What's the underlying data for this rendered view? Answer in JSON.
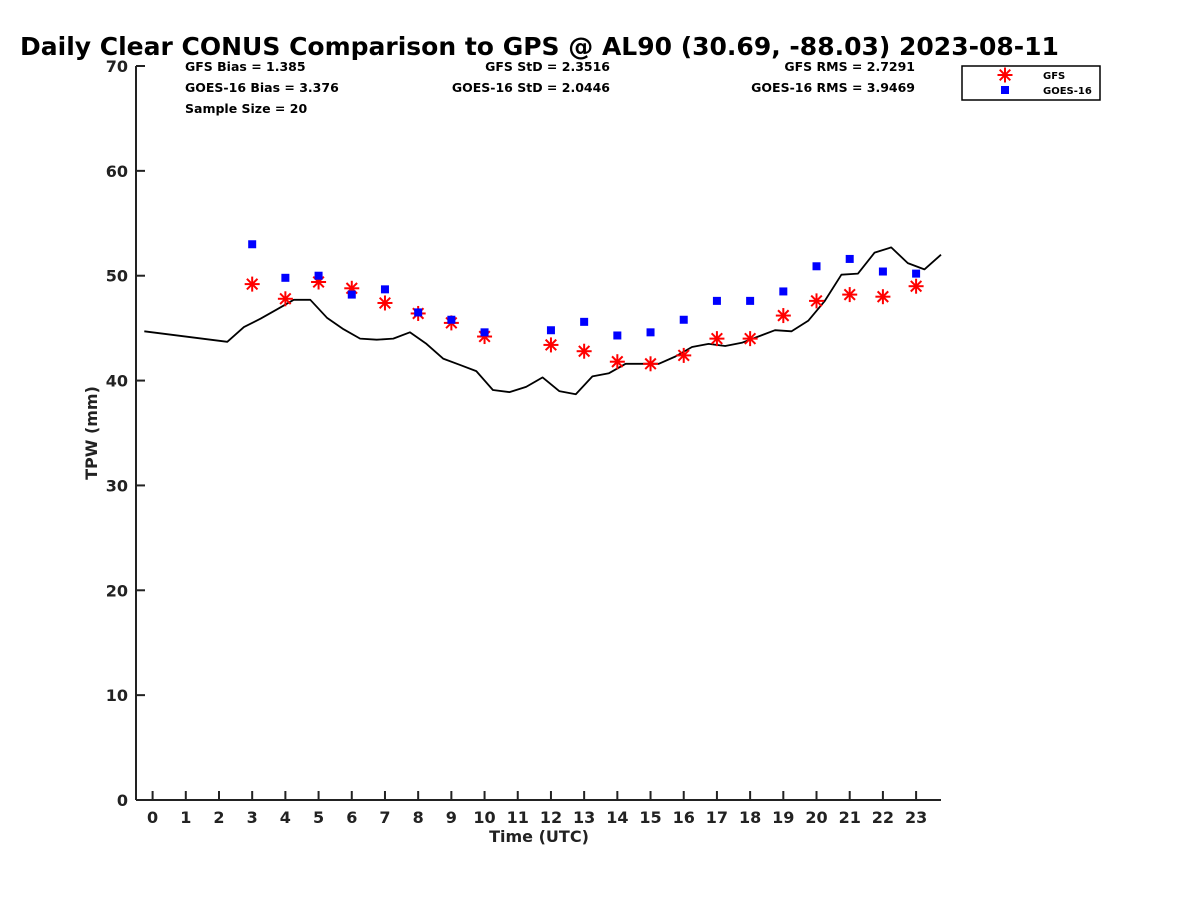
{
  "chart_data": {
    "type": "scatter",
    "title": "Daily Clear CONUS Comparison to GPS @ AL90 (30.69, -88.03) 2023-08-11",
    "xlabel": "Time (UTC)",
    "ylabel": "TPW (mm)",
    "xlim": [
      -0.5,
      23.75
    ],
    "ylim": [
      0,
      70
    ],
    "xticks": [
      0,
      1,
      2,
      3,
      4,
      5,
      6,
      7,
      8,
      9,
      10,
      11,
      12,
      13,
      14,
      15,
      16,
      17,
      18,
      19,
      20,
      21,
      22,
      23
    ],
    "yticks": [
      0,
      10,
      20,
      30,
      40,
      50,
      60,
      70
    ],
    "grid": false,
    "legend_position": "top-right",
    "stats": {
      "gfs_bias": "GFS Bias = 1.385",
      "goes_bias": "GOES-16 Bias = 3.376",
      "sample_size": "Sample Size = 20",
      "gfs_std": "GFS StD = 2.3516",
      "goes_std": "GOES-16 StD = 2.0446",
      "gfs_rms": "GFS RMS = 2.7291",
      "goes_rms": "GOES-16 RMS = 3.9469"
    },
    "series": [
      {
        "name": "GFS",
        "marker": "asterisk",
        "color": "#ff0000",
        "x": [
          3,
          4,
          5,
          6,
          7,
          8,
          9,
          10,
          12,
          13,
          14,
          15,
          16,
          17,
          18,
          19,
          20,
          21,
          22,
          23
        ],
        "y": [
          49.2,
          47.8,
          49.4,
          48.8,
          47.4,
          46.4,
          45.5,
          44.2,
          43.4,
          42.8,
          41.8,
          41.6,
          42.4,
          44.0,
          44.0,
          46.2,
          47.6,
          48.2,
          48.0,
          49.0
        ]
      },
      {
        "name": "GOES-16",
        "marker": "square",
        "color": "#0000ff",
        "x": [
          3,
          4,
          5,
          6,
          7,
          8,
          9,
          10,
          12,
          13,
          14,
          15,
          16,
          17,
          18,
          19,
          20,
          21,
          22,
          23
        ],
        "y": [
          53.0,
          49.8,
          50.0,
          48.2,
          48.7,
          46.5,
          45.8,
          44.6,
          44.8,
          45.6,
          44.3,
          44.6,
          45.8,
          47.6,
          47.6,
          48.5,
          50.9,
          51.6,
          50.4,
          50.2
        ]
      },
      {
        "marker": "line",
        "color": "#000000",
        "x": [
          -0.25,
          2.25,
          2.75,
          3.25,
          3.75,
          4.25,
          4.75,
          5.25,
          5.75,
          6.25,
          6.75,
          7.25,
          7.75,
          8.25,
          8.75,
          9.25,
          9.75,
          10.25,
          10.75,
          11.25,
          11.75,
          12.25,
          12.75,
          13.25,
          13.75,
          14.25,
          14.75,
          15.25,
          15.75,
          16.25,
          16.75,
          17.25,
          17.75,
          18.25,
          18.75,
          19.25,
          19.75,
          20.25,
          20.75,
          21.25,
          21.75,
          22.25,
          22.75,
          23.25,
          23.75
        ],
        "y": [
          44.7,
          43.7,
          45.1,
          45.9,
          46.8,
          47.7,
          47.7,
          46.0,
          44.9,
          44.0,
          43.9,
          44.0,
          44.6,
          43.5,
          42.1,
          41.5,
          40.9,
          39.1,
          38.9,
          39.4,
          40.3,
          39.0,
          38.7,
          40.4,
          40.7,
          41.6,
          41.6,
          41.6,
          42.3,
          43.2,
          43.5,
          43.3,
          43.6,
          44.2,
          44.8,
          44.7,
          45.7,
          47.6,
          50.1,
          50.2,
          52.2,
          52.7,
          51.2,
          50.6,
          52.0
        ]
      }
    ]
  }
}
